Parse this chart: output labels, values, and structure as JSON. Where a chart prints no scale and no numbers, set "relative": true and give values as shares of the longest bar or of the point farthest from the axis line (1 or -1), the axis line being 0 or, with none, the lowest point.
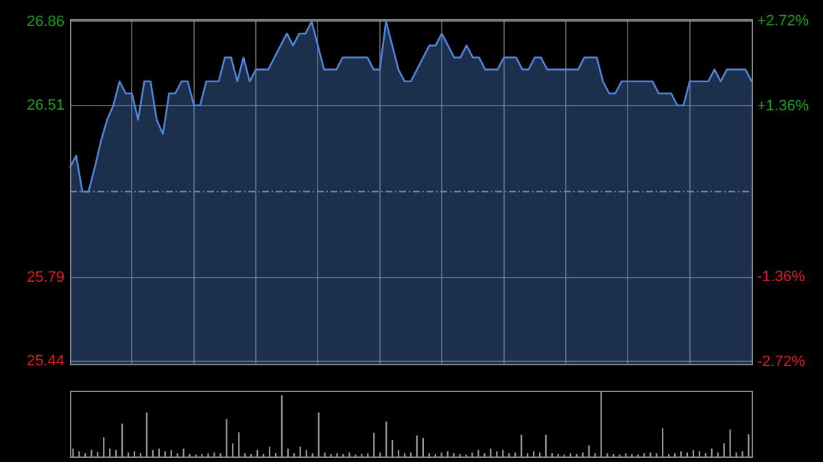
{
  "chart_data": [
    {
      "type": "area",
      "categories": [
        null,
        null,
        null,
        null,
        null,
        null,
        null,
        null,
        null,
        null,
        null,
        null,
        null,
        null,
        null,
        null,
        null,
        null,
        null,
        null,
        null,
        null,
        null,
        null,
        null,
        null,
        null,
        null,
        null,
        null,
        null,
        null,
        null,
        null,
        null,
        null,
        null,
        null,
        null,
        null,
        null,
        null,
        null,
        null,
        null,
        null,
        null,
        null,
        null,
        null,
        null,
        null,
        null,
        null,
        null,
        null,
        null,
        null,
        null,
        null,
        null,
        null,
        null,
        null,
        null,
        null,
        null,
        null,
        null,
        null,
        null,
        null,
        null,
        null,
        null,
        null,
        null,
        null,
        null,
        null,
        null,
        null,
        null,
        null,
        null,
        null,
        null,
        null,
        null,
        null,
        null,
        null,
        null,
        null,
        null,
        null,
        null,
        null,
        null,
        null,
        null,
        null,
        null,
        null,
        null,
        null,
        null,
        null,
        null,
        null,
        null
      ],
      "series": [
        {
          "color": "#4f86d9",
          "values": [
            26.25,
            26.3,
            26.15,
            26.15,
            26.25,
            26.36,
            26.45,
            26.51,
            26.61,
            26.56,
            26.56,
            26.45,
            26.61,
            26.61,
            26.45,
            26.39,
            26.56,
            26.56,
            26.61,
            26.61,
            26.51,
            26.51,
            26.61,
            26.61,
            26.61,
            26.71,
            26.71,
            26.61,
            26.71,
            26.61,
            26.66,
            26.66,
            26.66,
            26.71,
            26.76,
            26.81,
            26.76,
            26.81,
            26.81,
            26.86,
            26.76,
            26.66,
            26.66,
            26.66,
            26.71,
            26.71,
            26.71,
            26.71,
            26.71,
            26.66,
            26.66,
            26.86,
            26.76,
            26.66,
            26.61,
            26.61,
            26.66,
            26.71,
            26.76,
            26.76,
            26.81,
            26.76,
            26.71,
            26.71,
            26.76,
            26.71,
            26.71,
            26.66,
            26.66,
            26.66,
            26.71,
            26.71,
            26.71,
            26.66,
            26.66,
            26.71,
            26.71,
            26.66,
            26.66,
            26.66,
            26.66,
            26.66,
            26.66,
            26.71,
            26.71,
            26.71,
            26.61,
            26.56,
            26.56,
            26.61,
            26.61,
            26.61,
            26.61,
            26.61,
            26.61,
            26.56,
            26.56,
            26.56,
            26.51,
            26.51,
            26.61,
            26.61,
            26.61,
            26.61,
            26.66,
            26.61,
            26.66,
            26.66,
            26.66,
            26.66,
            26.61
          ]
        }
      ],
      "ylim": [
        25.43,
        26.87
      ],
      "yticks": [
        25.44,
        25.79,
        26.51,
        26.86
      ],
      "y2lim": [
        -2.75,
        2.75
      ],
      "y2ticks": [
        {
          "value": -2.72,
          "label": "-2.72%"
        },
        {
          "value": -1.36,
          "label": "-1.36%"
        },
        {
          "value": 1.36,
          "label": "+1.36%"
        },
        {
          "value": 2.72,
          "label": "+2.72%"
        }
      ],
      "ref_lines": [
        {
          "axis": "y",
          "value": 26.15,
          "color": "#888888",
          "line_style": "dashed"
        }
      ],
      "grid": true,
      "legend": false,
      "marker": "none",
      "tick_labels": "y"
    },
    {
      "type": "bar",
      "relative": true,
      "categories": [
        null,
        null,
        null,
        null,
        null,
        null,
        null,
        null,
        null,
        null,
        null,
        null,
        null,
        null,
        null,
        null,
        null,
        null,
        null,
        null,
        null,
        null,
        null,
        null,
        null,
        null,
        null,
        null,
        null,
        null,
        null,
        null,
        null,
        null,
        null,
        null,
        null,
        null,
        null,
        null,
        null,
        null,
        null,
        null,
        null,
        null,
        null,
        null,
        null,
        null,
        null,
        null,
        null,
        null,
        null,
        null,
        null,
        null,
        null,
        null,
        null,
        null,
        null,
        null,
        null,
        null,
        null,
        null,
        null,
        null,
        null,
        null,
        null,
        null,
        null,
        null,
        null,
        null,
        null,
        null,
        null,
        null,
        null,
        null,
        null,
        null,
        null,
        null,
        null,
        null,
        null,
        null,
        null,
        null,
        null,
        null,
        null,
        null,
        null,
        null,
        null,
        null,
        null,
        null,
        null,
        null,
        null,
        null,
        null,
        null,
        null
      ],
      "series": [
        {
          "color": "#9a9a9a",
          "values": [
            0.12,
            0.08,
            0.05,
            0.1,
            0.07,
            0.29,
            0.12,
            0.1,
            0.5,
            0.06,
            0.08,
            0.05,
            0.67,
            0.1,
            0.12,
            0.08,
            0.1,
            0.05,
            0.12,
            0.04,
            0.03,
            0.04,
            0.05,
            0.06,
            0.05,
            0.57,
            0.2,
            0.37,
            0.05,
            0.04,
            0.1,
            0.04,
            0.15,
            0.05,
            0.93,
            0.12,
            0.05,
            0.15,
            0.1,
            0.05,
            0.67,
            0.06,
            0.04,
            0.05,
            0.04,
            0.06,
            0.03,
            0.04,
            0.05,
            0.36,
            0.06,
            0.53,
            0.25,
            0.1,
            0.05,
            0.06,
            0.32,
            0.28,
            0.05,
            0.04,
            0.06,
            0.08,
            0.05,
            0.04,
            0.03,
            0.06,
            0.1,
            0.05,
            0.12,
            0.08,
            0.1,
            0.05,
            0.06,
            0.33,
            0.05,
            0.08,
            0.06,
            0.33,
            0.05,
            0.04,
            0.03,
            0.05,
            0.04,
            0.06,
            0.17,
            0.05,
            1.0,
            0.05,
            0.04,
            0.03,
            0.05,
            0.04,
            0.03,
            0.05,
            0.06,
            0.05,
            0.43,
            0.04,
            0.05,
            0.08,
            0.06,
            0.1,
            0.08,
            0.05,
            0.12,
            0.06,
            0.2,
            0.41,
            0.06,
            0.08,
            0.34
          ]
        }
      ],
      "legend": false,
      "tick_labels": false
    }
  ]
}
